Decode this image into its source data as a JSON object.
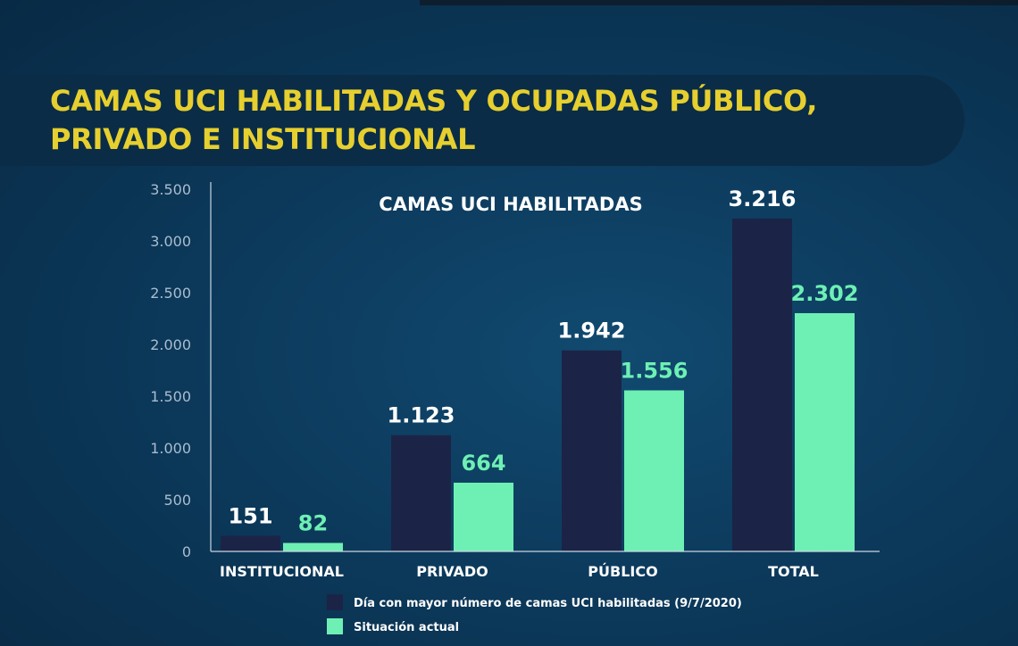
{
  "header": {
    "title_line1": "CAMAS UCI HABILITADAS Y OCUPADAS PÚBLICO,",
    "title_line2": "PRIVADO E INSTITUCIONAL"
  },
  "chart_data": {
    "type": "bar",
    "title": "CAMAS UCI HABILITADAS",
    "categories": [
      "INSTITUCIONAL",
      "PRIVADO",
      "PÚBLICO",
      "TOTAL"
    ],
    "series": [
      {
        "name": "Día con mayor número de camas UCI habilitadas (9/7/2020)",
        "color": "#1b2446",
        "values": [
          151,
          1123,
          1942,
          3216
        ],
        "labels": [
          "151",
          "1.123",
          "1.942",
          "3.216"
        ]
      },
      {
        "name": "Situación actual",
        "color": "#6ef0b4",
        "values": [
          82,
          664,
          1556,
          2302
        ],
        "labels": [
          "82",
          "664",
          "1.556",
          "2.302"
        ]
      }
    ],
    "ylim": [
      0,
      3500
    ],
    "yticks": [
      0,
      500,
      1000,
      1500,
      2000,
      2500,
      3000,
      3500
    ],
    "ytick_labels": [
      "0",
      "500",
      "1.000",
      "1.500",
      "2.000",
      "2.500",
      "3.000",
      "3.500"
    ],
    "xlabel": "",
    "ylabel": "",
    "grid": false,
    "legend": "bottom"
  }
}
